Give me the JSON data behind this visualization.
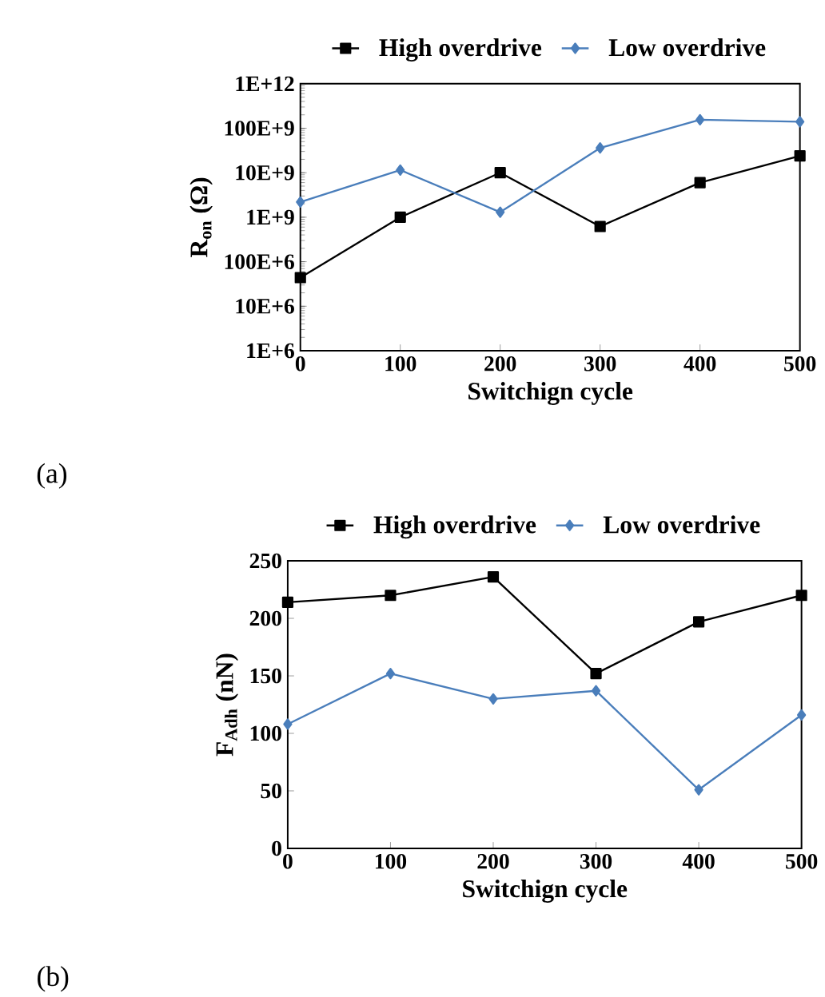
{
  "chart_data": [
    {
      "type": "line",
      "xlabel": "Switchign cycle",
      "ylabel": "R$_{on}$ (Ω)",
      "log": "y",
      "legend": "top",
      "annotations": [
        "(a)"
      ],
      "x": [
        0,
        100,
        200,
        300,
        400,
        500
      ],
      "xlim": [
        0,
        500
      ],
      "xticks": [
        0,
        100,
        200,
        300,
        400,
        500
      ],
      "ylim": [
        1000000,
        1000000000000
      ],
      "yticks": [
        {
          "value": 1000000,
          "label": "1E+6"
        },
        {
          "value": 10000000,
          "label": "10E+6"
        },
        {
          "value": 100000000,
          "label": "100E+6"
        },
        {
          "value": 1000000000,
          "label": "1E+9"
        },
        {
          "value": 10000000000,
          "label": "10E+9"
        },
        {
          "value": 100000000000,
          "label": "100E+9"
        },
        {
          "value": 1000000000000,
          "label": "1E+12"
        }
      ],
      "series": [
        {
          "name": "High overdrive",
          "color": "#000000",
          "marker": "square",
          "values": [
            44000000,
            1000000000,
            10000000000,
            620000000,
            6000000000,
            24000000000
          ]
        },
        {
          "name": "Low overdrive",
          "color": "#4a7ebb",
          "marker": "diamond",
          "values": [
            2200000000,
            11500000000,
            1300000000,
            36000000000,
            155000000000,
            140000000000
          ]
        }
      ]
    },
    {
      "type": "line",
      "xlabel": "Switchign cycle",
      "ylabel": "F$_{Adh}$ (nN)",
      "legend": "top",
      "annotations": [
        "(b)"
      ],
      "x": [
        0,
        100,
        200,
        300,
        400,
        500
      ],
      "xlim": [
        0,
        500
      ],
      "xticks": [
        0,
        100,
        200,
        300,
        400,
        500
      ],
      "ylim": [
        0,
        250
      ],
      "yticks": [
        0,
        50,
        100,
        150,
        200,
        250
      ],
      "series": [
        {
          "name": "High overdrive",
          "color": "#000000",
          "marker": "square",
          "values": [
            214,
            220,
            236,
            152,
            197,
            220
          ]
        },
        {
          "name": "Low overdrive",
          "color": "#4a7ebb",
          "marker": "diamond",
          "values": [
            108,
            152,
            130,
            137,
            51,
            116
          ]
        }
      ]
    }
  ]
}
